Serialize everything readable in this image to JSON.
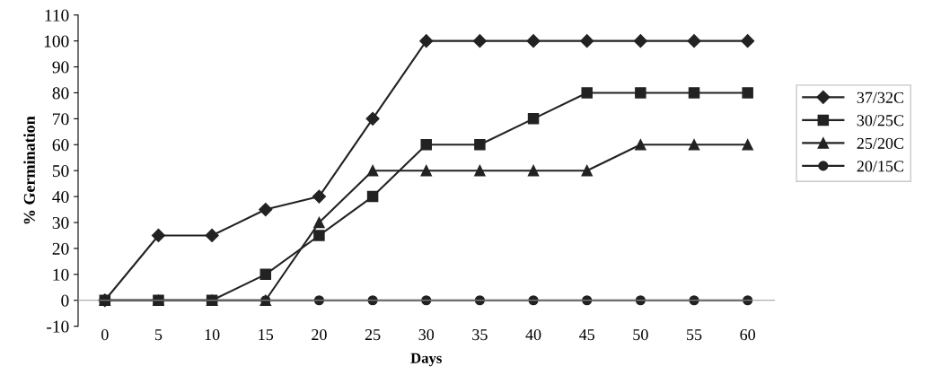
{
  "chart_data": {
    "type": "line",
    "xlabel": "Days",
    "ylabel": "% Germination",
    "categories": [
      "0",
      "5",
      "10",
      "15",
      "20",
      "25",
      "30",
      "35",
      "40",
      "45",
      "50",
      "55",
      "60"
    ],
    "ylim": [
      -10,
      110
    ],
    "yticks": [
      -10,
      0,
      10,
      20,
      30,
      40,
      50,
      60,
      70,
      80,
      90,
      100,
      110
    ],
    "grid": false,
    "legend": "right",
    "line_style": "solid",
    "series": [
      {
        "name": "37/32C",
        "color": "#222222",
        "marker": "diamond",
        "values": [
          0,
          25,
          25,
          35,
          40,
          70,
          100,
          100,
          100,
          100,
          100,
          100,
          100
        ]
      },
      {
        "name": "30/25C",
        "color": "#222222",
        "marker": "square",
        "values": [
          0,
          0,
          0,
          10,
          25,
          40,
          60,
          60,
          70,
          80,
          80,
          80,
          80
        ]
      },
      {
        "name": "25/20C",
        "color": "#222222",
        "marker": "triangle",
        "values": [
          0,
          0,
          0,
          0,
          30,
          50,
          50,
          50,
          50,
          50,
          60,
          60,
          60
        ]
      },
      {
        "name": "20/15C",
        "color": "#222222",
        "marker": "circle",
        "values": [
          0,
          0,
          0,
          0,
          0,
          0,
          0,
          0,
          0,
          0,
          0,
          0,
          0
        ]
      }
    ]
  }
}
